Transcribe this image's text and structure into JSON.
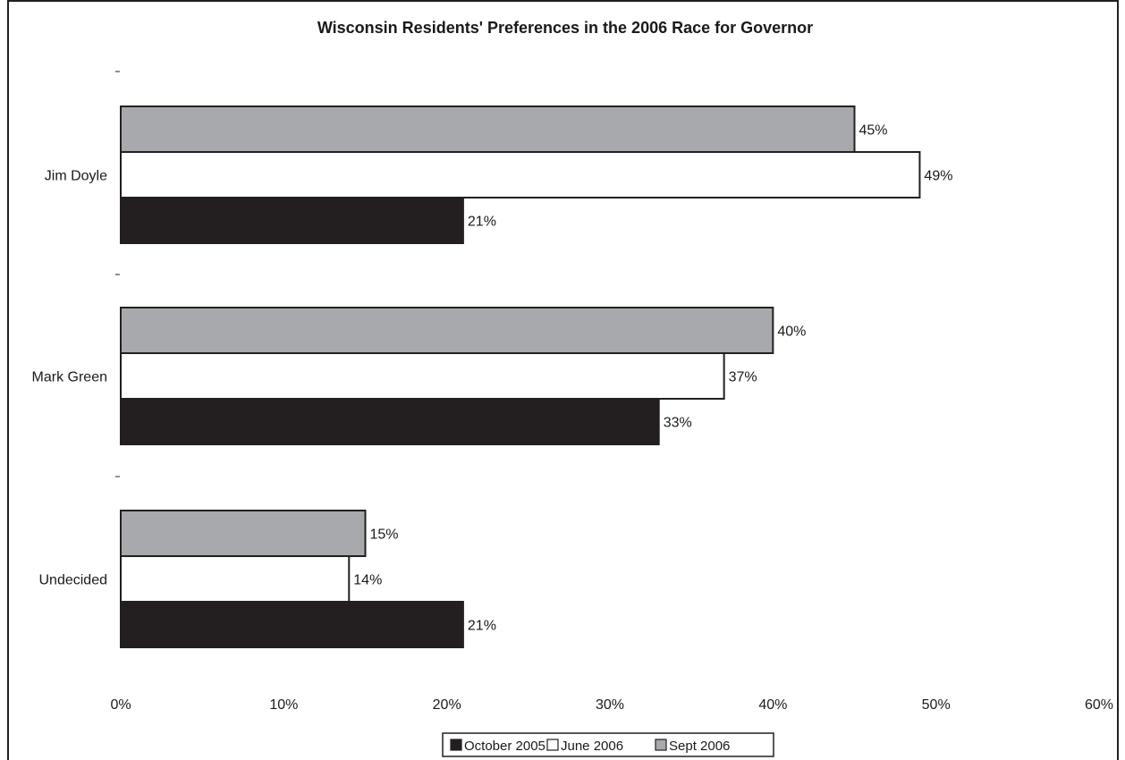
{
  "chart_data": {
    "type": "bar",
    "orientation": "horizontal",
    "title": "Wisconsin Residents' Preferences in the 2006 Race for Governor",
    "categories": [
      "Jim Doyle",
      "Mark Green",
      "Undecided"
    ],
    "series": [
      {
        "name": "Sept 2006",
        "values": [
          45,
          40,
          15
        ],
        "color": "#a7a9ac"
      },
      {
        "name": "June 2006",
        "values": [
          49,
          37,
          14
        ],
        "color": "#ffffff"
      },
      {
        "name": "October 2005",
        "values": [
          21,
          33,
          21
        ],
        "color": "#231f20"
      }
    ],
    "value_labels": [
      [
        "45%",
        "40%",
        "15%"
      ],
      [
        "49%",
        "37%",
        "14%"
      ],
      [
        "21%",
        "33%",
        "21%"
      ]
    ],
    "xlim": [
      0,
      60
    ],
    "x_ticks": [
      "0%",
      "10%",
      "20%",
      "30%",
      "40%",
      "50%",
      "60%"
    ],
    "xlabel": "",
    "ylabel": "",
    "grid": false,
    "legend": {
      "position": "bottom",
      "entries": [
        {
          "label": "October 2005",
          "color": "#231f20"
        },
        {
          "label": "June 2006",
          "color": "#ffffff"
        },
        {
          "label": "Sept 2006",
          "color": "#a7a9ac"
        }
      ]
    }
  }
}
